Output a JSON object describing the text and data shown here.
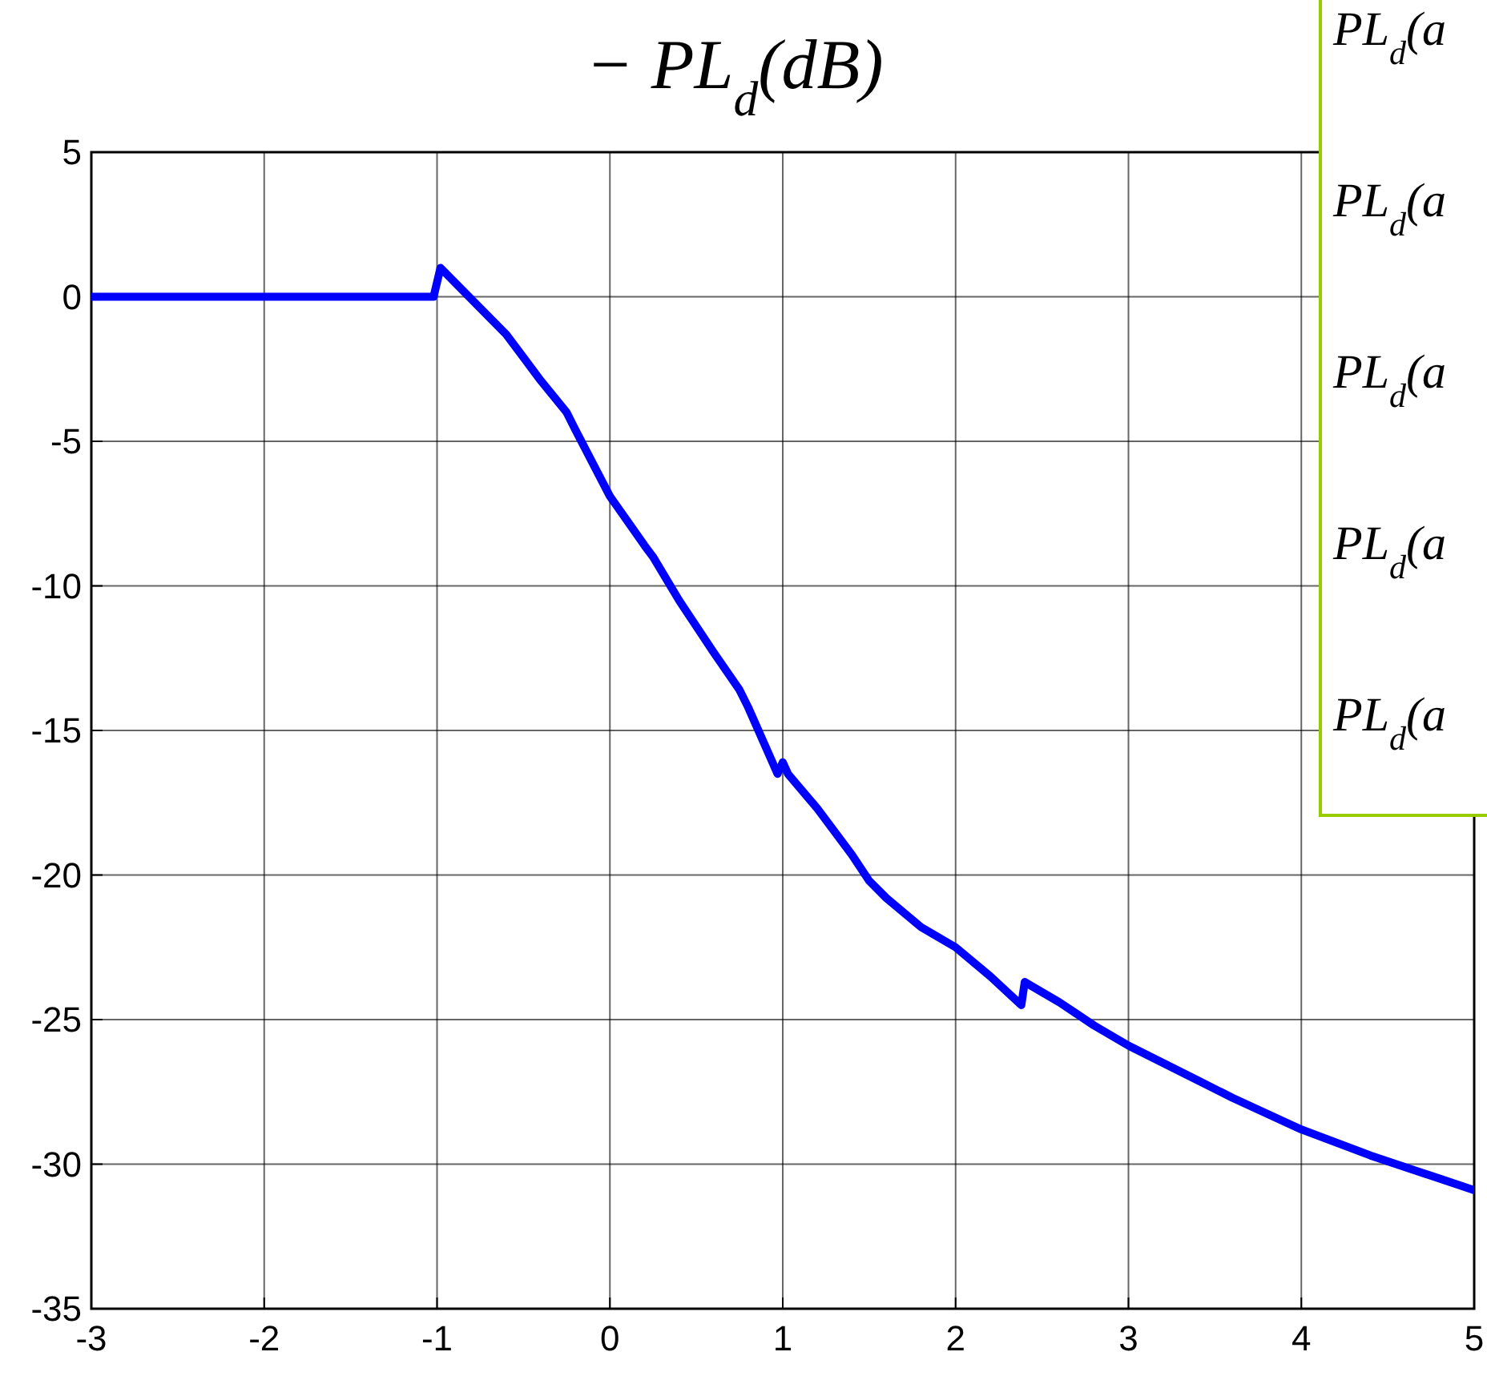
{
  "chart_data": {
    "type": "line",
    "title": "− PL$_{d}$(dB)",
    "annotations": [
      "PL$_{d}$(a",
      "PL$_{d}$(a",
      "PL$_{d}$(a",
      "PL$_{d}$(a",
      "PL$_{d}$(a"
    ],
    "xlim": [
      -3,
      5
    ],
    "xticks": [
      -3,
      -2,
      -1,
      0,
      1,
      2,
      3,
      4,
      5
    ],
    "ylim": [
      -35,
      5
    ],
    "yticks": [
      -35,
      -30,
      -25,
      -20,
      -15,
      -10,
      -5,
      0,
      5
    ],
    "grid": true,
    "line_style": "solid",
    "marker": "none",
    "series": [
      {
        "color": "#0000ff",
        "x": [
          -3,
          -2,
          -1.02,
          -0.98,
          -0.6,
          -0.5,
          -0.4,
          -0.25,
          -0.2,
          0,
          0.2,
          0.25,
          0.4,
          0.5,
          0.6,
          0.75,
          0.8,
          0.97,
          1.0,
          1.03,
          1.2,
          1.4,
          1.5,
          1.6,
          1.8,
          2.0,
          2.2,
          2.38,
          2.4,
          2.6,
          2.7,
          2.8,
          3.0,
          3.4,
          3.6,
          4.0,
          4.4,
          4.8,
          5
        ],
        "values": [
          0,
          0,
          0,
          1.0,
          -1.3,
          -2.1,
          -2.9,
          -4.0,
          -4.6,
          -6.9,
          -8.6,
          -9.0,
          -10.5,
          -11.4,
          -12.3,
          -13.6,
          -14.2,
          -16.5,
          -16.1,
          -16.5,
          -17.7,
          -19.3,
          -20.2,
          -20.8,
          -21.8,
          -22.5,
          -23.5,
          -24.5,
          -23.7,
          -24.4,
          -24.8,
          -25.2,
          -25.9,
          -27.1,
          -27.7,
          -28.8,
          -29.7,
          -30.5,
          -30.9
        ]
      }
    ]
  }
}
